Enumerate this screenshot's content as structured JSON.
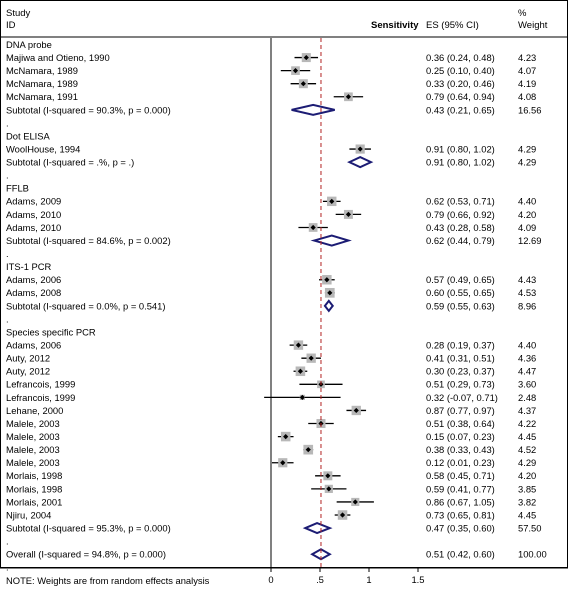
{
  "chart_data": {
    "type": "forest",
    "header": {
      "study_line1": "Study",
      "study_line2": "ID",
      "sensitivity": "Sensitivity",
      "es": "ES (95% CI)",
      "weight_line1": "%",
      "weight_line2": "Weight"
    },
    "xaxis": {
      "ticks": [
        "0",
        ".5",
        "1",
        "1.5"
      ],
      "tick_values": [
        0,
        0.5,
        1,
        1.5
      ],
      "range": [
        0,
        1.5
      ]
    },
    "overall_line_value": 0.51,
    "colors": {
      "summary_diamond": "#1c1c74",
      "overall_line": "#b22222",
      "box": "#b8b8b8",
      "line": "#000000"
    },
    "rows": [
      {
        "type": "group",
        "label": "DNA probe"
      },
      {
        "type": "study",
        "label": "Majiwa and Otieno, 1990",
        "es": 0.36,
        "lo": 0.24,
        "hi": 0.48,
        "ci": "0.36 (0.24, 0.48)",
        "weight": "4.23"
      },
      {
        "type": "study",
        "label": "McNamara, 1989",
        "es": 0.25,
        "lo": 0.1,
        "hi": 0.4,
        "ci": "0.25 (0.10, 0.40)",
        "weight": "4.07"
      },
      {
        "type": "study",
        "label": "McNamara, 1989",
        "es": 0.33,
        "lo": 0.2,
        "hi": 0.46,
        "ci": "0.33 (0.20, 0.46)",
        "weight": "4.19"
      },
      {
        "type": "study",
        "label": "McNamara, 1991",
        "es": 0.79,
        "lo": 0.64,
        "hi": 0.94,
        "ci": "0.79 (0.64, 0.94)",
        "weight": "4.08"
      },
      {
        "type": "subtotal",
        "label": "Subtotal  (I-squared = 90.3%, p = 0.000)",
        "es": 0.43,
        "lo": 0.21,
        "hi": 0.65,
        "ci": "0.43 (0.21, 0.65)",
        "weight": "16.56"
      },
      {
        "type": "dot",
        "label": "."
      },
      {
        "type": "group",
        "label": "Dot ELISA"
      },
      {
        "type": "study",
        "label": "WoolHouse, 1994",
        "es": 0.91,
        "lo": 0.8,
        "hi": 1.02,
        "ci": "0.91 (0.80, 1.02)",
        "weight": "4.29"
      },
      {
        "type": "subtotal",
        "label": "Subtotal  (I-squared = .%, p = .)",
        "es": 0.91,
        "lo": 0.8,
        "hi": 1.02,
        "ci": "0.91 (0.80, 1.02)",
        "weight": "4.29"
      },
      {
        "type": "dot",
        "label": "."
      },
      {
        "type": "group",
        "label": "FFLB"
      },
      {
        "type": "study",
        "label": "Adams, 2009",
        "es": 0.62,
        "lo": 0.53,
        "hi": 0.71,
        "ci": "0.62 (0.53, 0.71)",
        "weight": "4.40"
      },
      {
        "type": "study",
        "label": "Adams, 2010",
        "es": 0.79,
        "lo": 0.66,
        "hi": 0.92,
        "ci": "0.79 (0.66, 0.92)",
        "weight": "4.20"
      },
      {
        "type": "study",
        "label": "Adams, 2010",
        "es": 0.43,
        "lo": 0.28,
        "hi": 0.58,
        "ci": "0.43 (0.28, 0.58)",
        "weight": "4.09"
      },
      {
        "type": "subtotal",
        "label": "Subtotal  (I-squared = 84.6%, p = 0.002)",
        "es": 0.62,
        "lo": 0.44,
        "hi": 0.79,
        "ci": "0.62 (0.44, 0.79)",
        "weight": "12.69"
      },
      {
        "type": "dot",
        "label": "."
      },
      {
        "type": "group",
        "label": "ITS-1 PCR"
      },
      {
        "type": "study",
        "label": "Adams, 2006",
        "es": 0.57,
        "lo": 0.49,
        "hi": 0.65,
        "ci": "0.57 (0.49, 0.65)",
        "weight": "4.43"
      },
      {
        "type": "study",
        "label": "Adams, 2008",
        "es": 0.6,
        "lo": 0.55,
        "hi": 0.65,
        "ci": "0.60 (0.55, 0.65)",
        "weight": "4.53"
      },
      {
        "type": "subtotal",
        "label": "Subtotal  (I-squared = 0.0%, p = 0.541)",
        "es": 0.59,
        "lo": 0.55,
        "hi": 0.63,
        "ci": "0.59 (0.55, 0.63)",
        "weight": "8.96"
      },
      {
        "type": "dot",
        "label": "."
      },
      {
        "type": "group",
        "label": "Species specific PCR"
      },
      {
        "type": "study",
        "label": "Adams, 2006",
        "es": 0.28,
        "lo": 0.19,
        "hi": 0.37,
        "ci": "0.28 (0.19, 0.37)",
        "weight": "4.40"
      },
      {
        "type": "study",
        "label": "Auty, 2012",
        "es": 0.41,
        "lo": 0.31,
        "hi": 0.51,
        "ci": "0.41 (0.31, 0.51)",
        "weight": "4.36"
      },
      {
        "type": "study",
        "label": "Auty, 2012",
        "es": 0.3,
        "lo": 0.23,
        "hi": 0.37,
        "ci": "0.30 (0.23, 0.37)",
        "weight": "4.47"
      },
      {
        "type": "study",
        "label": "Lefrancois, 1999",
        "es": 0.51,
        "lo": 0.29,
        "hi": 0.73,
        "ci": "0.51 (0.29, 0.73)",
        "weight": "3.60"
      },
      {
        "type": "study",
        "label": "Lefrancois, 1999",
        "es": 0.32,
        "lo": -0.07,
        "hi": 0.71,
        "ci": "0.32 (-0.07, 0.71)",
        "weight": "2.48"
      },
      {
        "type": "study",
        "label": "Lehane, 2000",
        "es": 0.87,
        "lo": 0.77,
        "hi": 0.97,
        "ci": "0.87 (0.77, 0.97)",
        "weight": "4.37"
      },
      {
        "type": "study",
        "label": "Malele, 2003",
        "es": 0.51,
        "lo": 0.38,
        "hi": 0.64,
        "ci": "0.51 (0.38, 0.64)",
        "weight": "4.22"
      },
      {
        "type": "study",
        "label": "Malele, 2003",
        "es": 0.15,
        "lo": 0.07,
        "hi": 0.23,
        "ci": "0.15 (0.07, 0.23)",
        "weight": "4.45"
      },
      {
        "type": "study",
        "label": "Malele, 2003",
        "es": 0.38,
        "lo": 0.33,
        "hi": 0.43,
        "ci": "0.38 (0.33, 0.43)",
        "weight": "4.52"
      },
      {
        "type": "study",
        "label": "Malele, 2003",
        "es": 0.12,
        "lo": 0.01,
        "hi": 0.23,
        "ci": "0.12 (0.01, 0.23)",
        "weight": "4.29"
      },
      {
        "type": "study",
        "label": "Morlais, 1998",
        "es": 0.58,
        "lo": 0.45,
        "hi": 0.71,
        "ci": "0.58 (0.45, 0.71)",
        "weight": "4.20"
      },
      {
        "type": "study",
        "label": "Morlais, 1998",
        "es": 0.59,
        "lo": 0.41,
        "hi": 0.77,
        "ci": "0.59 (0.41, 0.77)",
        "weight": "3.85"
      },
      {
        "type": "study",
        "label": "Morlais, 2001",
        "es": 0.86,
        "lo": 0.67,
        "hi": 1.05,
        "ci": "0.86 (0.67, 1.05)",
        "weight": "3.82"
      },
      {
        "type": "study",
        "label": "Njiru, 2004",
        "es": 0.73,
        "lo": 0.65,
        "hi": 0.81,
        "ci": "0.73 (0.65, 0.81)",
        "weight": "4.45"
      },
      {
        "type": "subtotal",
        "label": "Subtotal  (I-squared = 95.3%, p = 0.000)",
        "es": 0.47,
        "lo": 0.35,
        "hi": 0.6,
        "ci": "0.47 (0.35, 0.60)",
        "weight": "57.50"
      },
      {
        "type": "dot",
        "label": "."
      },
      {
        "type": "overall",
        "label": "Overall  (I-squared = 94.8%, p = 0.000)",
        "es": 0.51,
        "lo": 0.42,
        "hi": 0.6,
        "ci": "0.51 (0.42, 0.60)",
        "weight": "100.00"
      },
      {
        "type": "dot",
        "label": "."
      },
      {
        "type": "note",
        "label": "NOTE: Weights are from random effects analysis"
      }
    ]
  }
}
